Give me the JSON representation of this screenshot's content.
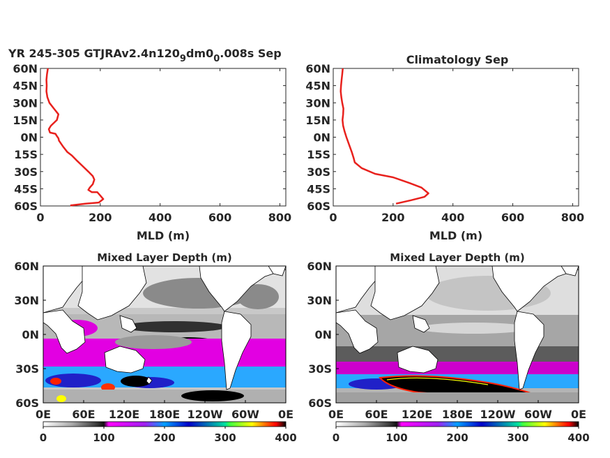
{
  "figure": {
    "title_left_main": "YR 245-305 GTJRAv2.4n120",
    "title_left_sub1": "9",
    "title_left_mid": "dm0",
    "title_left_sub2": "0",
    "title_left_end": ".008s Sep",
    "title_right": "Climatology Sep",
    "map_title_left": "Mixed Layer Depth (m)",
    "map_title_right": "Mixed Layer Depth (m)"
  },
  "colors": {
    "profile_line": "#e8211d",
    "axis": "#262626",
    "land": "#ffffff",
    "colorbar_stops": [
      "#ffffff",
      "#9a9a9a",
      "#101010",
      "#ff00ff",
      "#00a0ff",
      "#0000c0",
      "#00e0a0",
      "#ffff00",
      "#ff0000",
      "#000000"
    ]
  },
  "chart_data": [
    {
      "type": "line",
      "panel": "top-left",
      "xlabel": "MLD (m)",
      "ylabel": "",
      "xlim": [
        0,
        820
      ],
      "ylim": [
        -60,
        60
      ],
      "xticks": [
        0,
        200,
        400,
        600,
        800
      ],
      "yticks": [
        60,
        45,
        30,
        15,
        0,
        -15,
        -30,
        -45,
        -60
      ],
      "ytick_labels": [
        "60N",
        "45N",
        "30N",
        "15N",
        "0N",
        "15S",
        "30S",
        "45S",
        "60S"
      ],
      "series": [
        {
          "x": [
            25,
            22,
            20,
            21,
            20,
            23,
            30,
            45,
            60,
            55,
            35,
            28,
            32,
            50,
            55,
            60,
            62,
            75,
            90,
            105,
            120,
            140,
            160,
            175,
            180,
            175,
            165,
            160,
            172,
            190,
            200,
            210,
            195,
            150,
            100
          ],
          "y": [
            60,
            55,
            50,
            45,
            40,
            35,
            30,
            25,
            20,
            15,
            10,
            7,
            4,
            3,
            1,
            -1,
            -3,
            -8,
            -13,
            -16,
            -20,
            -25,
            -30,
            -34,
            -37,
            -41,
            -44,
            -46,
            -48,
            -48,
            -51,
            -54,
            -57,
            -58,
            -59.5
          ]
        }
      ]
    },
    {
      "type": "line",
      "panel": "top-right",
      "xlabel": "MLD (m)",
      "ylabel": "",
      "xlim": [
        0,
        820
      ],
      "ylim": [
        -60,
        60
      ],
      "xticks": [
        0,
        200,
        400,
        600,
        800
      ],
      "yticks": [
        60,
        45,
        30,
        15,
        0,
        -15,
        -30,
        -45,
        -60
      ],
      "ytick_labels": [
        "60N",
        "45N",
        "30N",
        "15N",
        "0N",
        "15S",
        "30S",
        "45S",
        "60S"
      ],
      "series": [
        {
          "x": [
            32,
            30,
            28,
            26,
            25,
            27,
            30,
            34,
            33,
            31,
            33,
            38,
            44,
            55,
            62,
            68,
            72,
            95,
            140,
            200,
            255,
            295,
            318,
            305,
            260,
            210
          ],
          "y": [
            60,
            55,
            50,
            45,
            40,
            35,
            30,
            25,
            20,
            15,
            10,
            5,
            0,
            -8,
            -13,
            -18,
            -22,
            -27,
            -32,
            -35,
            -40,
            -44,
            -49,
            -52,
            -55,
            -58
          ]
        }
      ]
    },
    {
      "type": "heatmap",
      "panel": "bottom-left",
      "title": "Mixed Layer Depth (m)",
      "xtick_labels": [
        "0E",
        "60E",
        "120E",
        "180E",
        "120W",
        "60W",
        "0E"
      ],
      "ytick_labels": [
        "60N",
        "30N",
        "0N",
        "30S",
        "60S"
      ],
      "colorbar_ticks": [
        0,
        100,
        200,
        300,
        400
      ]
    },
    {
      "type": "heatmap",
      "panel": "bottom-right",
      "title": "Mixed Layer Depth (m)",
      "xtick_labels": [
        "0E",
        "60E",
        "120E",
        "180E",
        "120W",
        "60W",
        "0E"
      ],
      "ytick_labels": [
        "60N",
        "30N",
        "0N",
        "30S",
        "60S"
      ],
      "colorbar_ticks": [
        0,
        100,
        200,
        300,
        400
      ]
    }
  ]
}
